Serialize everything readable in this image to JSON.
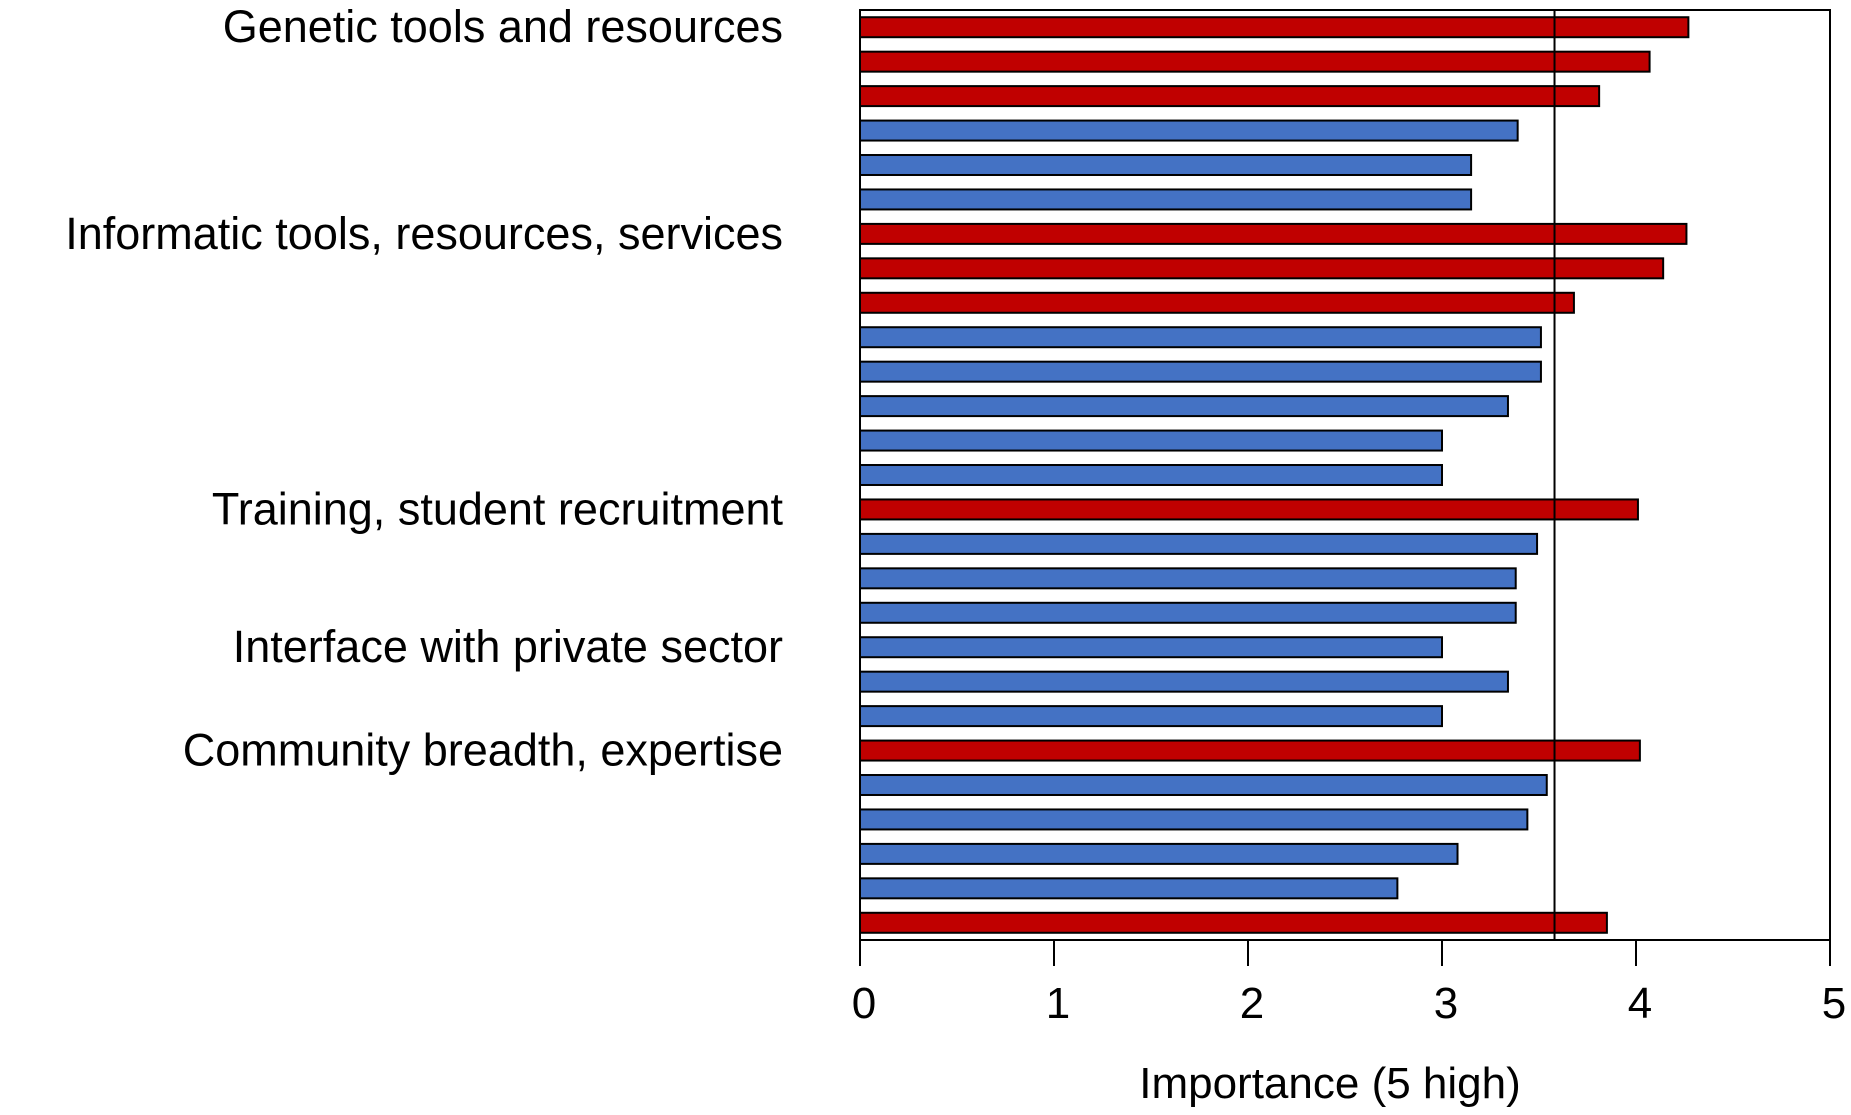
{
  "chart_data": {
    "type": "bar",
    "orientation": "horizontal",
    "title": "",
    "xlabel": "Importance (5 high)",
    "ylabel": "",
    "xlim": [
      0,
      5
    ],
    "xticks": [
      "0",
      "1",
      "2",
      "3",
      "4",
      "5"
    ],
    "grid": false,
    "legend": "none",
    "reference_line": 3.58,
    "colors": {
      "high": "#c00000",
      "other": "#4472c4",
      "outline": "#000000"
    },
    "group_labels": [
      {
        "text": "Genetic tools and resources",
        "bar_index": 0
      },
      {
        "text": "Informatic tools, resources, services",
        "bar_index": 6
      },
      {
        "text": "Training, student recruitment",
        "bar_index": 14
      },
      {
        "text": "Interface with private sector",
        "bar_index": 18
      },
      {
        "text": "Community breadth, expertise",
        "bar_index": 21
      }
    ],
    "bars": [
      {
        "value": 4.27,
        "group": "high"
      },
      {
        "value": 4.07,
        "group": "high"
      },
      {
        "value": 3.81,
        "group": "high"
      },
      {
        "value": 3.39,
        "group": "other"
      },
      {
        "value": 3.15,
        "group": "other"
      },
      {
        "value": 3.15,
        "group": "other"
      },
      {
        "value": 4.26,
        "group": "high"
      },
      {
        "value": 4.14,
        "group": "high"
      },
      {
        "value": 3.68,
        "group": "high"
      },
      {
        "value": 3.51,
        "group": "other"
      },
      {
        "value": 3.51,
        "group": "other"
      },
      {
        "value": 3.34,
        "group": "other"
      },
      {
        "value": 3.0,
        "group": "other"
      },
      {
        "value": 3.0,
        "group": "other"
      },
      {
        "value": 4.01,
        "group": "high"
      },
      {
        "value": 3.49,
        "group": "other"
      },
      {
        "value": 3.38,
        "group": "other"
      },
      {
        "value": 3.38,
        "group": "other"
      },
      {
        "value": 3.0,
        "group": "other"
      },
      {
        "value": 3.34,
        "group": "other"
      },
      {
        "value": 3.0,
        "group": "other"
      },
      {
        "value": 4.02,
        "group": "high"
      },
      {
        "value": 3.54,
        "group": "other"
      },
      {
        "value": 3.44,
        "group": "other"
      },
      {
        "value": 3.08,
        "group": "other"
      },
      {
        "value": 2.77,
        "group": "other"
      },
      {
        "value": 3.85,
        "group": "high"
      }
    ]
  }
}
